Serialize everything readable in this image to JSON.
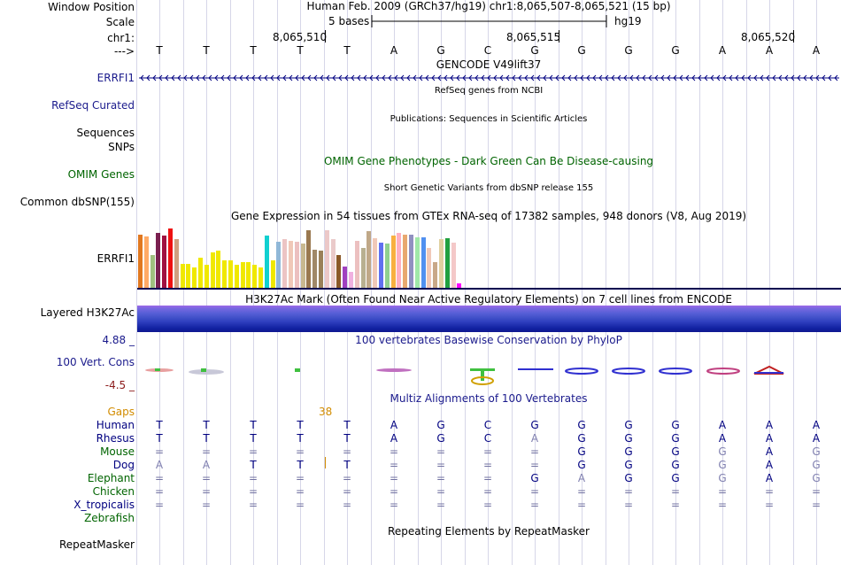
{
  "header": {
    "window_position_label": "Window Position",
    "scale_label": "Scale",
    "chrom_label": "chr1:",
    "strand_label": "--->",
    "position_title": "Human Feb. 2009 (GRCh37/hg19)   chr1:8,065,507-8,065,521 (15 bp)",
    "scale_text": "5 bases",
    "assembly": "hg19",
    "coords": [
      "8,065,510",
      "8,065,515",
      "8,065,520"
    ]
  },
  "sequence": [
    "T",
    "T",
    "T",
    "T",
    "T",
    "A",
    "G",
    "C",
    "G",
    "G",
    "G",
    "G",
    "A",
    "A",
    "A"
  ],
  "tracks": {
    "gencode": {
      "title": "GENCODE V49lift37",
      "label": "ERRFI1",
      "label_color": "#1a1a8c",
      "color": "#000080"
    },
    "refseq": {
      "title": "RefSeq genes from NCBI",
      "label": "RefSeq Curated",
      "label_color": "#1a1a8c"
    },
    "publications": {
      "title": "Publications: Sequences in Scientific Articles",
      "label": "Sequences"
    },
    "snps": {
      "label": "SNPs"
    },
    "omim": {
      "title": "OMIM Gene Phenotypes - Dark Green Can Be Disease-causing",
      "label": "OMIM Genes",
      "label_color": "#006400"
    },
    "dbsnp": {
      "title": "Short Genetic Variants from dbSNP release 155",
      "label": "Common dbSNP(155)"
    },
    "gtex": {
      "title": "Gene Expression in 54 tissues from GTEx RNA-seq of 17382 samples, 948 donors (V8, Aug 2019)",
      "label": "ERRFI1"
    },
    "h3k27ac": {
      "title": "H3K27Ac Mark (Often Found Near Active Regulatory Elements) on 7 cell lines from ENCODE",
      "label": "Layered H3K27Ac"
    },
    "phylop": {
      "title": "100 vertebrates Basewise Conservation by PhyloP",
      "label": "100 Vert. Cons",
      "max": "4.88 _",
      "min": "-4.5 _",
      "max_color": "#1a1a8c",
      "min_color": "#8b1a1a"
    },
    "multiz": {
      "title": "Multiz Alignments of 100 Vertebrates",
      "gaps_label": "Gaps",
      "gap_value": "38",
      "gap_color": "#d28c00"
    },
    "repeatmasker": {
      "title": "Repeating Elements by RepeatMasker",
      "label": "RepeatMasker"
    }
  },
  "species": [
    {
      "name": "Human",
      "color": "#000080",
      "bases": [
        "T",
        "T",
        "T",
        "T",
        "T",
        "A",
        "G",
        "C",
        "G",
        "G",
        "G",
        "G",
        "A",
        "A",
        "A"
      ]
    },
    {
      "name": "Rhesus",
      "color": "#000080",
      "bases": [
        "T",
        "T",
        "T",
        "T",
        "T",
        "A",
        "G",
        "C",
        "A",
        "G",
        "G",
        "G",
        "A",
        "A",
        "A"
      ]
    },
    {
      "name": "Mouse",
      "color": "#006400",
      "bases": [
        "=",
        "=",
        "=",
        "=",
        "=",
        "=",
        "=",
        "=",
        "=",
        "G",
        "G",
        "G",
        "G",
        "A",
        "G"
      ]
    },
    {
      "name": "Dog",
      "color": "#000080",
      "bases": [
        "A",
        "A",
        "T",
        "T",
        "T",
        "=",
        "=",
        "=",
        "=",
        "G",
        "G",
        "G",
        "G",
        "A",
        "G"
      ]
    },
    {
      "name": "Elephant",
      "color": "#006400",
      "bases": [
        "=",
        "=",
        "=",
        "=",
        "=",
        "=",
        "=",
        "=",
        "G",
        "A",
        "G",
        "G",
        "G",
        "A",
        "G"
      ]
    },
    {
      "name": "Chicken",
      "color": "#006400",
      "bases": [
        "=",
        "=",
        "=",
        "=",
        "=",
        "=",
        "=",
        "=",
        "=",
        "=",
        "=",
        "=",
        "=",
        "=",
        "="
      ]
    },
    {
      "name": "X_tropicalis",
      "color": "#000080",
      "bases": [
        "=",
        "=",
        "=",
        "=",
        "=",
        "=",
        "=",
        "=",
        "=",
        "=",
        "=",
        "=",
        "=",
        "=",
        "="
      ]
    },
    {
      "name": "Zebrafish",
      "color": "#006400",
      "bases": []
    }
  ],
  "gtex_bars": [
    {
      "h": 0.97,
      "c": "#e07820"
    },
    {
      "h": 0.93,
      "c": "#ffaa66"
    },
    {
      "h": 0.6,
      "c": "#a0c080"
    },
    {
      "h": 1.0,
      "c": "#7a2050"
    },
    {
      "h": 0.95,
      "c": "#a01040"
    },
    {
      "h": 1.08,
      "c": "#ee1111"
    },
    {
      "h": 0.88,
      "c": "#d0a080"
    },
    {
      "h": 0.45,
      "c": "#f0e800"
    },
    {
      "h": 0.45,
      "c": "#f0e800"
    },
    {
      "h": 0.38,
      "c": "#f0e800"
    },
    {
      "h": 0.55,
      "c": "#f0e800"
    },
    {
      "h": 0.42,
      "c": "#f0e800"
    },
    {
      "h": 0.65,
      "c": "#f0e800"
    },
    {
      "h": 0.68,
      "c": "#f0e800"
    },
    {
      "h": 0.5,
      "c": "#f0e800"
    },
    {
      "h": 0.5,
      "c": "#f0e800"
    },
    {
      "h": 0.42,
      "c": "#f0e800"
    },
    {
      "h": 0.48,
      "c": "#f0e800"
    },
    {
      "h": 0.48,
      "c": "#f0e800"
    },
    {
      "h": 0.42,
      "c": "#f0e800"
    },
    {
      "h": 0.38,
      "c": "#f0e800"
    },
    {
      "h": 0.95,
      "c": "#10d0d0"
    },
    {
      "h": 0.5,
      "c": "#f0e800"
    },
    {
      "h": 0.84,
      "c": "#90b8d8"
    },
    {
      "h": 0.88,
      "c": "#ecc4c4"
    },
    {
      "h": 0.86,
      "c": "#f0c8b8"
    },
    {
      "h": 0.84,
      "c": "#ecc0c0"
    },
    {
      "h": 0.8,
      "c": "#c8b890"
    },
    {
      "h": 1.04,
      "c": "#9a7850"
    },
    {
      "h": 0.7,
      "c": "#a08868"
    },
    {
      "h": 0.68,
      "c": "#9a8058"
    },
    {
      "h": 1.04,
      "c": "#ecc8c8"
    },
    {
      "h": 0.88,
      "c": "#eacaca"
    },
    {
      "h": 0.6,
      "c": "#8a5828"
    },
    {
      "h": 0.4,
      "c": "#a040c0"
    },
    {
      "h": 0.3,
      "c": "#f0b0e0"
    },
    {
      "h": 0.85,
      "c": "#ecc0c0"
    },
    {
      "h": 0.72,
      "c": "#b8b090"
    },
    {
      "h": 1.02,
      "c": "#c0a888"
    },
    {
      "h": 0.9,
      "c": "#f0c8b8"
    },
    {
      "h": 0.82,
      "c": "#6070f0"
    },
    {
      "h": 0.8,
      "c": "#90d090"
    },
    {
      "h": 0.95,
      "c": "#f8b040"
    },
    {
      "h": 1.0,
      "c": "#ffb0c0"
    },
    {
      "h": 0.96,
      "c": "#e8a870"
    },
    {
      "h": 0.96,
      "c": "#9090c0"
    },
    {
      "h": 0.92,
      "c": "#a0e8a8"
    },
    {
      "h": 0.92,
      "c": "#5090f0"
    },
    {
      "h": 0.72,
      "c": "#f0c8b8"
    },
    {
      "h": 0.48,
      "c": "#c8a888"
    },
    {
      "h": 0.88,
      "c": "#e0d0a0"
    },
    {
      "h": 0.9,
      "c": "#20a040"
    },
    {
      "h": 0.82,
      "c": "#f4c8c8"
    },
    {
      "h": 0.1,
      "c": "#ff00ff"
    }
  ]
}
